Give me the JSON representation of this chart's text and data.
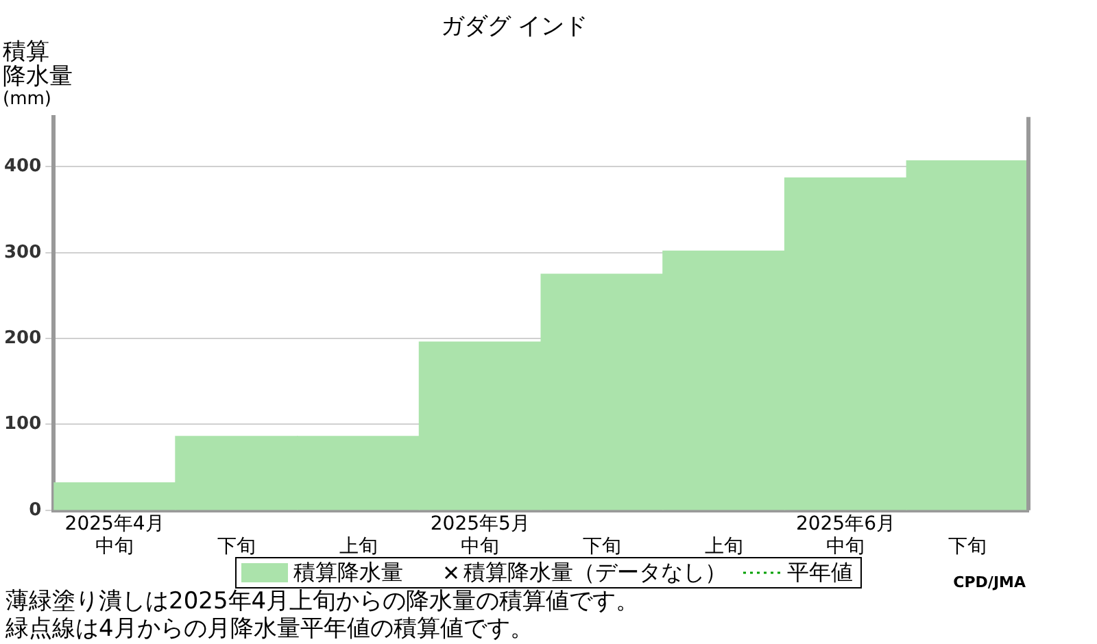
{
  "chart_data": {
    "type": "bar",
    "title": "ガダグ インド",
    "ylabel": "積算降水量(mm)",
    "categories": [
      "2025年4月中旬",
      "下旬",
      "上旬",
      "2025年5月中旬",
      "下旬",
      "上旬",
      "2025年6月中旬",
      "下旬"
    ],
    "series": [
      {
        "name": "積算降水量",
        "color": "#abe3ab",
        "values": [
          32,
          86,
          86,
          196,
          275,
          302,
          387,
          407
        ]
      },
      {
        "name": "積算降水量（データなし）",
        "type": "scatter",
        "marker": "cross",
        "color": "#000000",
        "values": [
          null,
          null,
          null,
          null,
          null,
          null,
          null,
          null
        ]
      },
      {
        "name": "平年値",
        "type": "line",
        "line_style": "dotted",
        "color": "#00a000",
        "values": [
          null,
          null,
          null,
          null,
          null,
          null,
          null,
          null
        ]
      }
    ],
    "ylim": [
      0,
      458
    ],
    "yticks": [
      0,
      100,
      200,
      300,
      400
    ],
    "grid": "y",
    "legend": "bottom",
    "annotations": [
      "薄緑塗り潰しは2025年4月上旬からの降水量の積算値です。",
      "緑点線は4月からの月降水量平年値の積算値です。",
      "CPD/JMA"
    ]
  }
}
